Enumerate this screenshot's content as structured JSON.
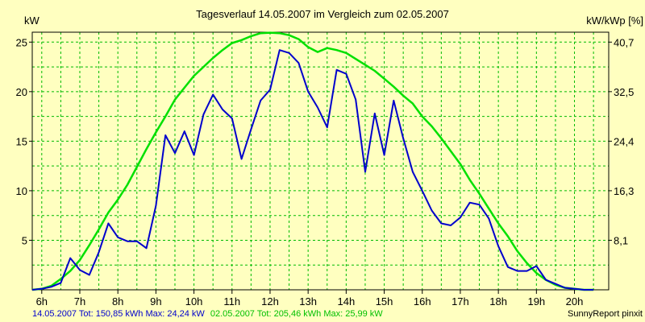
{
  "chart_data": {
    "type": "line",
    "title": "Tagesverlauf 14.05.2007 im Vergleich zum 02.05.2007",
    "ylabel_left": "kW",
    "ylabel_right": "kW/kWp [%]",
    "xticks": [
      "6h",
      "7h",
      "8h",
      "9h",
      "10h",
      "11h",
      "12h",
      "13h",
      "14h",
      "15h",
      "16h",
      "17h",
      "18h",
      "19h",
      "20h"
    ],
    "xlim": [
      5.75,
      20.9
    ],
    "ylim": [
      0,
      26
    ],
    "yticks_left": [
      "5",
      "10",
      "15",
      "20",
      "25"
    ],
    "yticks_left_values": [
      5,
      10,
      15,
      20,
      25
    ],
    "yticks_right": [
      "8,1",
      "16,3",
      "24,4",
      "32,5",
      "40,7"
    ],
    "grid": true,
    "colors": {
      "background": "#FFFFC0",
      "axes": "#000000",
      "grid": "#00BB00",
      "series1": "#0000CC",
      "series2": "#00E000"
    },
    "series": [
      {
        "name": "14.05.2007",
        "color": "#0000CC",
        "x": [
          5.75,
          6.0,
          6.25,
          6.5,
          6.75,
          7.0,
          7.25,
          7.5,
          7.75,
          8.0,
          8.25,
          8.5,
          8.75,
          9.0,
          9.25,
          9.5,
          9.75,
          10.0,
          10.25,
          10.5,
          10.75,
          11.0,
          11.25,
          11.5,
          11.75,
          12.0,
          12.25,
          12.5,
          12.75,
          13.0,
          13.25,
          13.5,
          13.75,
          14.0,
          14.25,
          14.5,
          14.75,
          15.0,
          15.25,
          15.5,
          15.75,
          16.0,
          16.25,
          16.5,
          16.75,
          17.0,
          17.25,
          17.5,
          17.75,
          18.0,
          18.25,
          18.5,
          18.75,
          19.0,
          19.25,
          19.5,
          19.75,
          20.0,
          20.25,
          20.5
        ],
        "y": [
          0.0,
          0.1,
          0.3,
          0.7,
          3.2,
          2.0,
          1.5,
          3.8,
          6.7,
          5.3,
          4.9,
          4.9,
          4.2,
          8.5,
          15.6,
          13.8,
          16.0,
          13.6,
          17.7,
          19.7,
          18.2,
          17.3,
          13.2,
          16.2,
          19.1,
          20.2,
          24.2,
          23.9,
          22.9,
          20.0,
          18.4,
          16.4,
          22.2,
          21.8,
          19.2,
          11.9,
          17.8,
          13.6,
          19.1,
          15.3,
          11.9,
          10.0,
          8.0,
          6.7,
          6.5,
          7.3,
          8.8,
          8.6,
          7.2,
          4.4,
          2.3,
          1.9,
          1.9,
          2.4,
          1.0,
          0.6,
          0.2,
          0.1,
          0.0,
          0.0
        ]
      },
      {
        "name": "02.05.2007",
        "color": "#00E000",
        "x": [
          5.75,
          6.0,
          6.25,
          6.5,
          6.75,
          7.0,
          7.25,
          7.5,
          7.75,
          8.0,
          8.25,
          8.5,
          8.75,
          9.0,
          9.25,
          9.5,
          9.75,
          10.0,
          10.25,
          10.5,
          10.75,
          11.0,
          11.25,
          11.5,
          11.75,
          12.0,
          12.25,
          12.5,
          12.75,
          13.0,
          13.25,
          13.5,
          13.75,
          14.0,
          14.25,
          14.5,
          14.75,
          15.0,
          15.25,
          15.5,
          15.75,
          16.0,
          16.25,
          16.5,
          16.75,
          17.0,
          17.25,
          17.5,
          17.75,
          18.0,
          18.25,
          18.5,
          18.75,
          19.0,
          19.25,
          19.5,
          19.75,
          20.0,
          20.25,
          20.5
        ],
        "y": [
          0.0,
          0.1,
          0.4,
          1.1,
          1.9,
          3.0,
          4.5,
          6.1,
          7.8,
          9.1,
          10.6,
          12.4,
          14.2,
          15.9,
          17.5,
          19.2,
          20.4,
          21.6,
          22.5,
          23.4,
          24.2,
          24.9,
          25.2,
          25.6,
          25.9,
          25.95,
          25.9,
          25.7,
          25.3,
          24.5,
          24.0,
          24.4,
          24.2,
          23.9,
          23.3,
          22.7,
          22.1,
          21.3,
          20.5,
          19.6,
          18.8,
          17.5,
          16.5,
          15.3,
          14.0,
          12.7,
          11.1,
          9.7,
          8.2,
          6.7,
          5.4,
          3.9,
          2.7,
          1.7,
          1.0,
          0.5,
          0.2,
          0.1,
          0.0,
          0.0
        ]
      }
    ],
    "footer": {
      "series1_text": "14.05.2007 Tot: 150,85 kWh Max: 24,24 kW",
      "series2_text": "02.05.2007 Tot: 205,46 kWh Max: 25,99 kW",
      "credit": "SunnyReport pinxit"
    }
  }
}
